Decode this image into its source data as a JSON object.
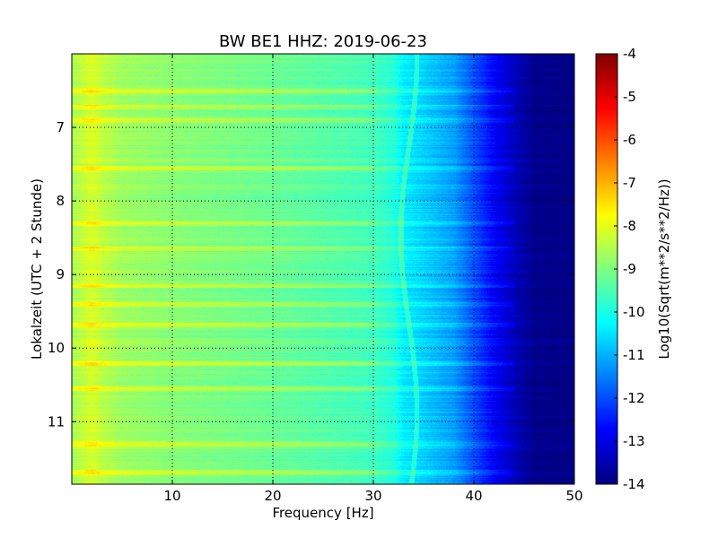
{
  "chart_data": {
    "type": "heatmap",
    "title": "BW BE1 HHZ: 2019-06-23",
    "xlabel": "Frequency [Hz]",
    "ylabel": "Lokalzeit (UTC + 2 Stunde)",
    "xlim": [
      0,
      50
    ],
    "ylim": [
      6.0,
      11.85
    ],
    "y_inverted": true,
    "x_ticks": [
      "10",
      "20",
      "30",
      "40",
      "50"
    ],
    "y_ticks": [
      "7",
      "8",
      "9",
      "10",
      "11"
    ],
    "grid": true,
    "colorbar": {
      "label": "Log10(Sqrt(m**2/s**2/Hz))",
      "range": [
        -14,
        -4
      ],
      "ticks": [
        "-4",
        "-5",
        "-6",
        "-7",
        "-8",
        "-9",
        "-10",
        "-11",
        "-12",
        "-13",
        "-14"
      ],
      "colormap": "jet"
    },
    "profile": {
      "frequency_hz": [
        0,
        2,
        3,
        5,
        10,
        20,
        30,
        32,
        33,
        35,
        38,
        40,
        42,
        44,
        46,
        50
      ],
      "log10_amplitude": [
        -8.6,
        -8.1,
        -8.4,
        -8.7,
        -8.9,
        -9.2,
        -9.6,
        -9.9,
        -10.4,
        -10.7,
        -11.2,
        -12.0,
        -12.8,
        -13.4,
        -13.9,
        -14.0
      ]
    },
    "bands": [
      {
        "hour": 6.5,
        "log10_amplitude": -8.3
      },
      {
        "hour": 6.72,
        "log10_amplitude": -8.3
      },
      {
        "hour": 6.9,
        "log10_amplitude": -8.4
      },
      {
        "hour": 7.55,
        "log10_amplitude": -9.0
      },
      {
        "hour": 8.3,
        "log10_amplitude": -9.0
      },
      {
        "hour": 8.65,
        "log10_amplitude": -9.0
      },
      {
        "hour": 9.15,
        "log10_amplitude": -9.1
      },
      {
        "hour": 9.4,
        "log10_amplitude": -8.4
      },
      {
        "hour": 9.68,
        "log10_amplitude": -9.0
      },
      {
        "hour": 10.2,
        "log10_amplitude": -9.0
      },
      {
        "hour": 10.55,
        "log10_amplitude": -9.0
      },
      {
        "hour": 11.3,
        "log10_amplitude": -9.0
      },
      {
        "hour": 11.68,
        "log10_amplitude": -8.9
      }
    ]
  }
}
